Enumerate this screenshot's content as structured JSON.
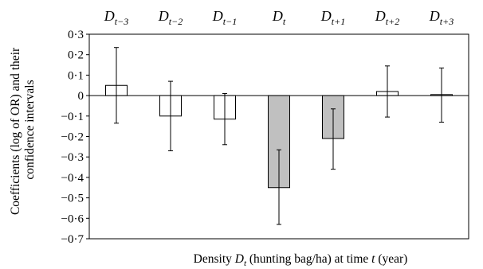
{
  "chart_data": {
    "type": "bar",
    "categories": [
      {
        "base": "D",
        "sub": "t−3"
      },
      {
        "base": "D",
        "sub": "t−2"
      },
      {
        "base": "D",
        "sub": "t−1"
      },
      {
        "base": "D",
        "sub": "t"
      },
      {
        "base": "D",
        "sub": "t+1"
      },
      {
        "base": "D",
        "sub": "t+2"
      },
      {
        "base": "D",
        "sub": "t+3"
      }
    ],
    "values": [
      0.05,
      -0.1,
      -0.115,
      -0.45,
      -0.21,
      0.02,
      0.005
    ],
    "ci_upper": [
      0.235,
      0.07,
      0.01,
      -0.265,
      -0.065,
      0.145,
      0.135
    ],
    "ci_lower": [
      -0.135,
      -0.27,
      -0.24,
      -0.63,
      -0.36,
      -0.105,
      -0.13
    ],
    "bar_fill": [
      "#ffffff",
      "#ffffff",
      "#ffffff",
      "#c0c0c0",
      "#c0c0c0",
      "#ffffff",
      "#ffffff"
    ],
    "bar_stroke": "#000000",
    "ylim": [
      -0.7,
      0.3
    ],
    "yticks": [
      0.3,
      0.2,
      0.1,
      0,
      -0.1,
      -0.2,
      -0.3,
      -0.4,
      -0.5,
      -0.6,
      -0.7
    ],
    "ytick_labels": [
      "0·3",
      "0·2",
      "0·1",
      "0",
      "−0·1",
      "−0·2",
      "−0·3",
      "−0·4",
      "−0·5",
      "−0·6",
      "−0·7"
    ],
    "ylabel_line1": "Coefficients (log of OR) and their",
    "ylabel_line2": "confidence intervals",
    "xlabel": {
      "part1": "Density ",
      "var": "D",
      "sub": "t",
      "part2": " (hunting bag/ha) at time ",
      "var2": "t",
      "part3": " (year)"
    },
    "grid": false,
    "legend": "none"
  }
}
